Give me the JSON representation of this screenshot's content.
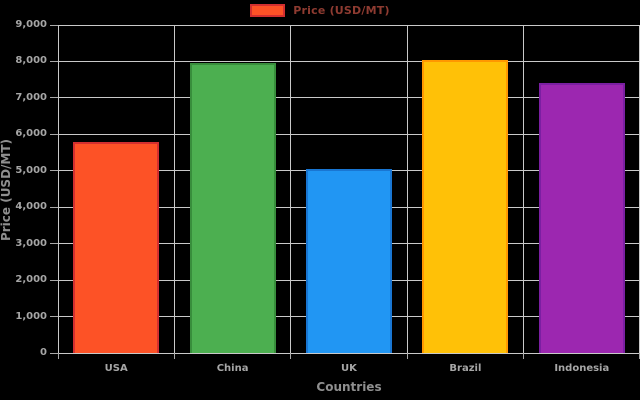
{
  "legend": {
    "label": "Price (USD/MT)",
    "swatch_fill": "#FD5226",
    "swatch_border": "#D32F2F",
    "text_color": "#8E3B31"
  },
  "chart_data": {
    "type": "bar",
    "title": "Price (USD/MT)",
    "categories": [
      "USA",
      "China",
      "UK",
      "Brazil",
      "Indonesia"
    ],
    "values": [
      5800,
      7950,
      5050,
      8050,
      7400
    ],
    "bar_colors": [
      {
        "fill": "#FD5226",
        "border": "#D32F2F"
      },
      {
        "fill": "#4CAF50",
        "border": "#388E3C"
      },
      {
        "fill": "#2196F3",
        "border": "#1976D2"
      },
      {
        "fill": "#FFC107",
        "border": "#FF9800"
      },
      {
        "fill": "#9C27B0",
        "border": "#7B1FA2"
      }
    ],
    "xlabel": "Countries",
    "ylabel": "Price (USD/MT)",
    "ylim": [
      0,
      9000
    ],
    "ytick_step": 1000,
    "ytick_labels": [
      "0",
      "1,000",
      "2,000",
      "3,000",
      "4,000",
      "5,000",
      "6,000",
      "7,000",
      "8,000",
      "9,000"
    ],
    "grid": true,
    "legend_position": "top",
    "background_color": "#000000",
    "grid_color": "#C9C9C9",
    "axis_color": "#A9A9A9",
    "tick_label_color": "#A6A6A6",
    "axis_title_color": "#8F8F8F"
  }
}
